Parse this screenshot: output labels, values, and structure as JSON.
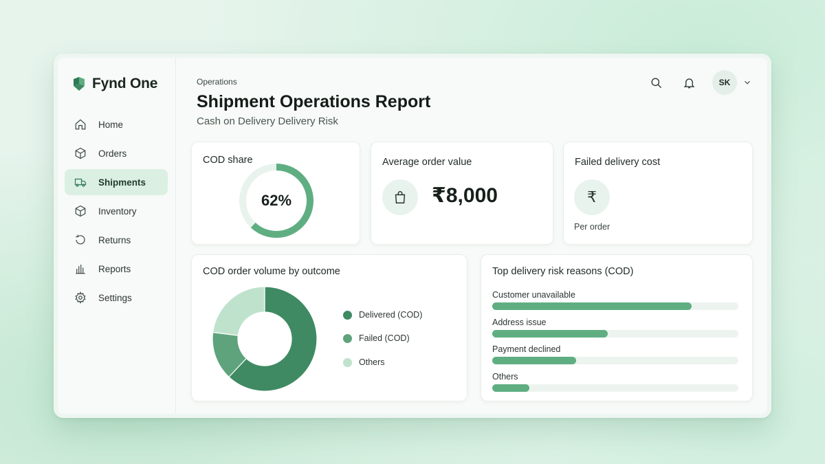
{
  "app": {
    "name": "Fynd One"
  },
  "sidebar": {
    "items": [
      {
        "label": "Home",
        "icon": "home-icon",
        "active": false
      },
      {
        "label": "Orders",
        "icon": "box-icon",
        "active": false
      },
      {
        "label": "Shipments",
        "icon": "truck-icon",
        "active": true
      },
      {
        "label": "Inventory",
        "icon": "cube-icon",
        "active": false
      },
      {
        "label": "Returns",
        "icon": "return-icon",
        "active": false
      },
      {
        "label": "Reports",
        "icon": "bar-chart-icon",
        "active": false
      },
      {
        "label": "Settings",
        "icon": "gear-icon",
        "active": false
      }
    ]
  },
  "header": {
    "breadcrumb": "Operations",
    "title": "Shipment Operations Report",
    "subtitle": "Cash on Delivery Delivery Risk",
    "avatar_initials": "SK"
  },
  "kpis": {
    "cod_share": {
      "title": "COD share",
      "value": "62%",
      "fraction": 0.62
    },
    "avg_order": {
      "title": "Average order value",
      "value": "₹8,000"
    },
    "failed_cost": {
      "title": "Failed delivery cost",
      "note": "Per order"
    }
  },
  "colors": {
    "accent": "#5fae82",
    "delivered": "#3f8a63",
    "failed": "#5fa37c",
    "others": "#bfe2cd",
    "active_nav_bg": "#dcefe3"
  },
  "donut_card": {
    "title": "COD order volume by outcome"
  },
  "bars_card": {
    "title": "Top delivery risk reasons (COD)"
  },
  "chart_data": [
    {
      "type": "pie",
      "title": "COD order volume by outcome",
      "categories": [
        "Delivered (COD)",
        "Failed (COD)",
        "Others"
      ],
      "values": [
        62,
        15,
        23
      ]
    },
    {
      "type": "bar",
      "title": "Top delivery risk reasons (COD)",
      "categories": [
        "Customer unavailable",
        "Address issue",
        "Payment declined",
        "Others"
      ],
      "values": [
        81,
        47,
        34,
        15
      ],
      "ylim": [
        0,
        100
      ]
    }
  ]
}
